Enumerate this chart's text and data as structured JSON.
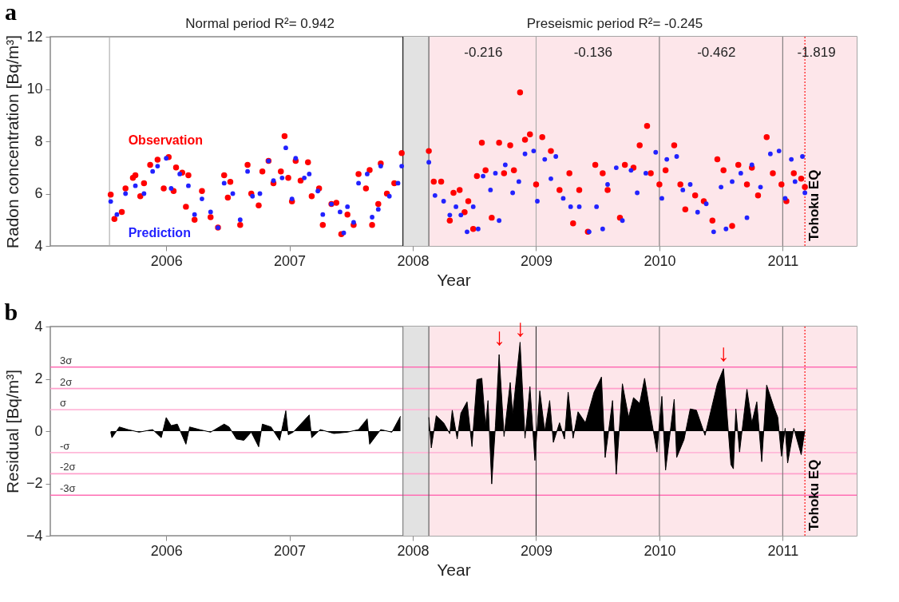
{
  "chart_data": [
    {
      "type": "scatter",
      "title": "a",
      "xlabel": "Year",
      "ylabel": "Radon concentration [Bq/m³]",
      "xlim": [
        2005.06,
        2011.6
      ],
      "xticks": [
        2006,
        2007,
        2008,
        2009,
        2010,
        2011
      ],
      "ylim": [
        4,
        12
      ],
      "yticks": [
        4,
        6,
        8,
        10,
        12
      ],
      "marker": "circle",
      "series": [
        {
          "name": "Observation",
          "color": "#ff0000",
          "x": [
            2005.55,
            2005.58,
            2005.64,
            2005.67,
            2005.73,
            2005.75,
            2005.79,
            2005.82,
            2005.87,
            2005.93,
            2005.98,
            2006.02,
            2006.06,
            2006.08,
            2006.13,
            2006.16,
            2006.18,
            2006.23,
            2006.29,
            2006.36,
            2006.42,
            2006.47,
            2006.5,
            2006.52,
            2006.6,
            2006.66,
            2006.69,
            2006.75,
            2006.78,
            2006.83,
            2006.87,
            2006.93,
            2006.96,
            2006.99,
            2007.02,
            2007.05,
            2007.09,
            2007.15,
            2007.18,
            2007.24,
            2007.27,
            2007.34,
            2007.38,
            2007.42,
            2007.47,
            2007.52,
            2007.56,
            2007.62,
            2007.65,
            2007.67,
            2007.72,
            2007.74,
            2007.79,
            2007.85,
            2007.91,
            2008.13,
            2008.17,
            2008.23,
            2008.3,
            2008.33,
            2008.38,
            2008.42,
            2008.45,
            2008.49,
            2008.52,
            2008.56,
            2008.59,
            2008.64,
            2008.7,
            2008.74,
            2008.79,
            2008.82,
            2008.87,
            2008.91,
            2008.95,
            2009.0,
            2009.05,
            2009.12,
            2009.19,
            2009.27,
            2009.3,
            2009.35,
            2009.42,
            2009.48,
            2009.54,
            2009.58,
            2009.68,
            2009.72,
            2009.79,
            2009.84,
            2009.9,
            2009.93,
            2010.0,
            2010.05,
            2010.12,
            2010.17,
            2010.21,
            2010.29,
            2010.36,
            2010.43,
            2010.47,
            2010.52,
            2010.59,
            2010.64,
            2010.71,
            2010.75,
            2010.8,
            2010.87,
            2010.92,
            2010.99,
            2011.03,
            2011.09,
            2011.15,
            2011.18
          ],
          "values": [
            5.96,
            5.03,
            5.3,
            6.2,
            6.6,
            6.7,
            5.9,
            6.4,
            7.1,
            7.3,
            6.2,
            7.4,
            6.1,
            7.0,
            6.8,
            5.5,
            6.7,
            5.0,
            6.1,
            5.1,
            4.7,
            6.7,
            5.85,
            6.45,
            4.8,
            7.1,
            6.0,
            5.55,
            6.85,
            7.25,
            6.4,
            6.85,
            8.2,
            6.6,
            5.7,
            7.25,
            6.5,
            7.2,
            5.9,
            6.2,
            4.8,
            5.6,
            5.65,
            4.45,
            5.2,
            4.8,
            6.75,
            6.2,
            6.9,
            4.8,
            5.6,
            7.15,
            6.0,
            6.4,
            7.55,
            7.63,
            6.46,
            6.46,
            4.97,
            6.03,
            6.14,
            5.29,
            5.71,
            4.65,
            6.67,
            7.95,
            6.89,
            5.08,
            7.95,
            6.78,
            7.85,
            6.89,
            9.87,
            8.06,
            8.27,
            6.35,
            8.16,
            7.63,
            6.14,
            6.78,
            4.86,
            6.14,
            4.54,
            7.1,
            6.78,
            6.14,
            5.08,
            7.1,
            6.99,
            7.85,
            8.59,
            6.78,
            6.35,
            6.89,
            7.85,
            6.35,
            5.4,
            5.93,
            5.71,
            4.97,
            7.31,
            6.89,
            4.76,
            7.1,
            6.35,
            6.99,
            5.93,
            8.16,
            6.78,
            6.35,
            5.71,
            6.78,
            6.57,
            6.25
          ]
        },
        {
          "name": "Prediction",
          "color": "#2222ff",
          "x": [
            2005.55,
            2005.6,
            2005.67,
            2005.75,
            2005.82,
            2005.89,
            2005.93,
            2006.0,
            2006.04,
            2006.11,
            2006.18,
            2006.23,
            2006.29,
            2006.36,
            2006.42,
            2006.47,
            2006.54,
            2006.6,
            2006.66,
            2006.7,
            2006.76,
            2006.83,
            2006.87,
            2006.94,
            2006.97,
            2007.02,
            2007.05,
            2007.12,
            2007.16,
            2007.23,
            2007.27,
            2007.34,
            2007.41,
            2007.44,
            2007.47,
            2007.52,
            2007.56,
            2007.63,
            2007.67,
            2007.72,
            2007.74,
            2007.81,
            2007.88,
            2007.91,
            2008.13,
            2008.18,
            2008.25,
            2008.3,
            2008.35,
            2008.39,
            2008.44,
            2008.49,
            2008.53,
            2008.57,
            2008.63,
            2008.67,
            2008.7,
            2008.75,
            2008.81,
            2008.86,
            2008.91,
            2008.98,
            2009.01,
            2009.07,
            2009.12,
            2009.16,
            2009.22,
            2009.28,
            2009.35,
            2009.43,
            2009.49,
            2009.54,
            2009.58,
            2009.65,
            2009.7,
            2009.77,
            2009.82,
            2009.89,
            2009.97,
            2010.02,
            2010.06,
            2010.14,
            2010.19,
            2010.25,
            2010.31,
            2010.38,
            2010.44,
            2010.5,
            2010.54,
            2010.59,
            2010.66,
            2010.71,
            2010.75,
            2010.82,
            2010.9,
            2010.97,
            2011.02,
            2011.07,
            2011.1,
            2011.16,
            2011.18
          ],
          "values": [
            5.7,
            5.2,
            6.0,
            6.3,
            6.0,
            6.85,
            7.05,
            7.35,
            6.2,
            6.75,
            6.3,
            5.2,
            5.8,
            5.3,
            4.7,
            6.4,
            6.0,
            5.0,
            6.85,
            5.9,
            6.0,
            7.25,
            6.5,
            6.6,
            7.75,
            5.8,
            7.35,
            6.6,
            6.75,
            6.1,
            5.2,
            5.6,
            5.3,
            4.5,
            5.5,
            4.9,
            6.4,
            6.75,
            5.1,
            5.4,
            7.05,
            5.9,
            6.4,
            7.05,
            7.2,
            5.93,
            5.71,
            5.18,
            5.5,
            5.18,
            4.54,
            5.5,
            4.65,
            6.67,
            6.14,
            6.78,
            4.97,
            7.1,
            6.03,
            6.46,
            7.52,
            7.63,
            5.71,
            7.31,
            6.57,
            7.42,
            5.82,
            5.5,
            5.5,
            4.54,
            5.5,
            4.65,
            6.35,
            6.99,
            4.97,
            6.89,
            6.03,
            6.78,
            7.58,
            5.82,
            7.31,
            7.42,
            6.14,
            6.35,
            5.29,
            5.61,
            4.54,
            6.25,
            4.65,
            6.46,
            6.78,
            5.08,
            7.1,
            6.25,
            7.52,
            7.63,
            5.82,
            7.31,
            6.46,
            7.42,
            6.03
          ]
        }
      ],
      "bands": [
        {
          "axis": "x",
          "from": 2007.92,
          "to": 2008.13,
          "color": "#e2e2e2"
        },
        {
          "axis": "x",
          "from": 2008.13,
          "to": 2011.6,
          "color": "#fde6ea"
        }
      ],
      "ref_lines": [
        {
          "axis": "x",
          "value": 2005.54,
          "color": "#aaaaaa"
        },
        {
          "axis": "x",
          "value": 2007.92,
          "color": "#000000"
        },
        {
          "axis": "x",
          "value": 2008.13,
          "color": "#555555"
        },
        {
          "axis": "x",
          "value": 2009,
          "color": "#aaaaaa"
        },
        {
          "axis": "x",
          "value": 2010,
          "color": "#777777"
        },
        {
          "axis": "x",
          "value": 2011,
          "color": "#777777"
        },
        {
          "axis": "x",
          "value": 2011.18,
          "label": "Tohoku EQ",
          "color": "#ff0000",
          "line_style": "dotted"
        }
      ],
      "annotations": [
        "Normal period   R²= 0.942",
        "Preseismic period   R²= -0.245",
        "-0.216",
        "-0.136",
        "-0.462",
        "-1.819"
      ]
    },
    {
      "type": "area",
      "title": "b",
      "xlabel": "Year",
      "ylabel": "Residual [Bq/m³]",
      "xlim": [
        2005.06,
        2011.6
      ],
      "xticks": [
        2006,
        2007,
        2008,
        2009,
        2010,
        2011
      ],
      "ylim": [
        -4,
        4
      ],
      "yticks": [
        -4,
        -2,
        0,
        2,
        4
      ],
      "series": [
        {
          "color": "#000000",
          "x": [
            2005.55,
            2005.56,
            2005.62,
            2005.69,
            2005.78,
            2005.89,
            2005.96,
            2006.0,
            2006.04,
            2006.09,
            2006.16,
            2006.19,
            2006.27,
            2006.36,
            2006.47,
            2006.51,
            2006.57,
            2006.63,
            2006.69,
            2006.75,
            2006.78,
            2006.85,
            2006.92,
            2006.97,
            2006.99,
            2007.03,
            2007.16,
            2007.18,
            2007.25,
            2007.36,
            2007.47,
            2007.56,
            2007.63,
            2007.65,
            2007.74,
            2007.83,
            2007.9,
            2008.02,
            2008.13,
            2008.15,
            2008.19,
            2008.25,
            2008.3,
            2008.32,
            2008.36,
            2008.39,
            2008.44,
            2008.48,
            2008.52,
            2008.56,
            2008.59,
            2008.61,
            2008.64,
            2008.67,
            2008.7,
            2008.74,
            2008.79,
            2008.81,
            2008.87,
            2008.91,
            2008.95,
            2008.99,
            2009.03,
            2009.07,
            2009.11,
            2009.14,
            2009.19,
            2009.23,
            2009.26,
            2009.3,
            2009.34,
            2009.4,
            2009.47,
            2009.53,
            2009.56,
            2009.62,
            2009.65,
            2009.7,
            2009.75,
            2009.79,
            2009.84,
            2009.88,
            2009.92,
            2009.98,
            2010.02,
            2010.05,
            2010.12,
            2010.14,
            2010.2,
            2010.25,
            2010.3,
            2010.37,
            2010.47,
            2010.52,
            2010.58,
            2010.6,
            2010.62,
            2010.65,
            2010.71,
            2010.75,
            2010.79,
            2010.83,
            2010.87,
            2010.93,
            2010.96,
            2010.99,
            2011.02,
            2011.04,
            2011.09,
            2011.15,
            2011.18
          ],
          "values": [
            -0.04,
            -0.25,
            0.16,
            0.06,
            -0.04,
            0.06,
            -0.25,
            0.52,
            0.21,
            0.27,
            -0.5,
            0.16,
            0.06,
            -0.04,
            0.27,
            0.16,
            -0.3,
            -0.35,
            -0.04,
            -0.6,
            0.27,
            0.16,
            -0.35,
            0.78,
            -0.14,
            -0.04,
            0.62,
            -0.25,
            0.06,
            -0.09,
            -0.04,
            0.06,
            0.47,
            -0.5,
            0.06,
            -0.04,
            0.57,
            null,
            0.53,
            -0.64,
            0.59,
            0.32,
            -0.1,
            0.8,
            -0.3,
            0.69,
            1.12,
            -0.59,
            1.97,
            2.02,
            0.2,
            1.17,
            -2.02,
            0.2,
            2.93,
            -0.2,
            1.86,
            0.64,
            3.4,
            -0.27,
            1.7,
            -1.12,
            1.54,
            0,
            1.17,
            -0.43,
            0.32,
            -0.3,
            1.49,
            -0.27,
            0.74,
            0.32,
            1.49,
            2.07,
            -1.01,
            1.17,
            -1.65,
            1.81,
            0.53,
            1.28,
            1.06,
            2.02,
            0.85,
            -0.8,
            1.33,
            -1.49,
            1.22,
            -1.01,
            -0.32,
            0.85,
            0.8,
            -0.16,
            1.81,
            2.39,
            -1.28,
            -1.44,
            0.85,
            -0.8,
            1.6,
            0.32,
            1.12,
            -1.17,
            1.76,
            0.9,
            0.53,
            -0.96,
            0.11,
            -1.22,
            0.11,
            -0.9,
            0.05
          ]
        }
      ],
      "bands": [
        {
          "axis": "x",
          "from": 2007.92,
          "to": 2008.13,
          "color": "#e2e2e2"
        },
        {
          "axis": "x",
          "from": 2008.13,
          "to": 2011.6,
          "color": "#fde6ea"
        }
      ],
      "ref_lines": [
        {
          "axis": "y",
          "value": 2.45,
          "label": "3σ",
          "color": "#ff6eb4"
        },
        {
          "axis": "y",
          "value": 1.63,
          "label": "2σ",
          "color": "#ffa0cc"
        },
        {
          "axis": "y",
          "value": 0.82,
          "label": "σ",
          "color": "#ffb8d8"
        },
        {
          "axis": "y",
          "value": -0.82,
          "label": "-σ",
          "color": "#ffb8d8"
        },
        {
          "axis": "y",
          "value": -1.63,
          "label": "-2σ",
          "color": "#ffa0cc"
        },
        {
          "axis": "y",
          "value": -2.45,
          "label": "-3σ",
          "color": "#ff6eb4"
        },
        {
          "axis": "x",
          "value": 2007.92,
          "color": "#777777"
        },
        {
          "axis": "x",
          "value": 2008.13,
          "color": "#555555"
        },
        {
          "axis": "x",
          "value": 2009,
          "color": "#333333"
        },
        {
          "axis": "x",
          "value": 2010,
          "color": "#777777"
        },
        {
          "axis": "x",
          "value": 2011,
          "color": "#777777"
        },
        {
          "axis": "x",
          "value": 2011.18,
          "label": "Tohoku EQ",
          "color": "#ff0000",
          "line_style": "dotted"
        }
      ],
      "annotations": [
        "↓",
        "↓",
        "↓"
      ]
    }
  ]
}
